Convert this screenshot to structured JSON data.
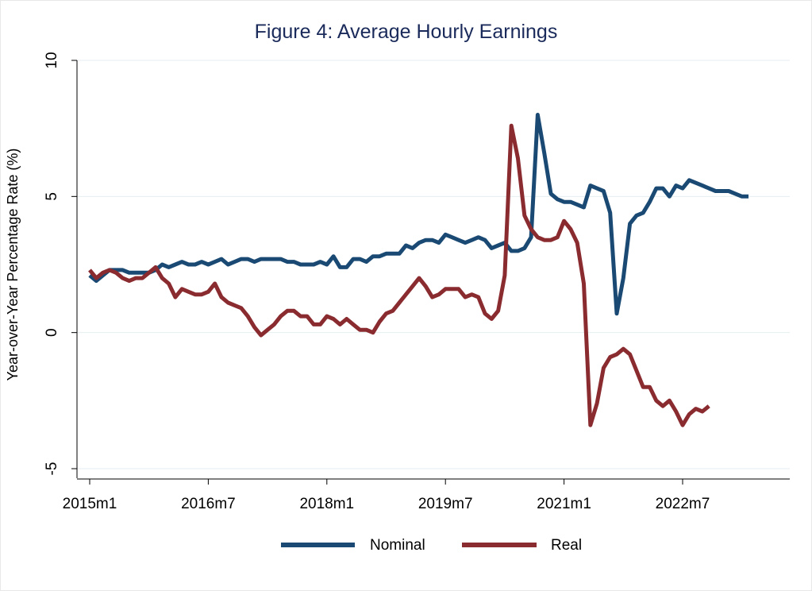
{
  "chart_data": {
    "type": "line",
    "title": "Figure 4: Average Hourly Earnings",
    "xlabel": "",
    "ylabel": "Year-over-Year Percentage Rate (%)",
    "ylim": [
      -5,
      10
    ],
    "yticks": [
      "-5",
      "0",
      "5",
      "10"
    ],
    "xticks": [
      "2015m1",
      "2016m7",
      "2018m1",
      "2019m7",
      "2021m1",
      "2022m7"
    ],
    "grid": true,
    "legend": "bottom",
    "series": [
      {
        "name": "Nominal",
        "color": "#1a4a73",
        "values": [
          2.1,
          1.9,
          2.1,
          2.3,
          2.3,
          2.3,
          2.2,
          2.2,
          2.2,
          2.2,
          2.3,
          2.5,
          2.4,
          2.5,
          2.6,
          2.5,
          2.5,
          2.6,
          2.5,
          2.6,
          2.7,
          2.5,
          2.6,
          2.7,
          2.7,
          2.6,
          2.7,
          2.7,
          2.7,
          2.7,
          2.6,
          2.6,
          2.5,
          2.5,
          2.5,
          2.6,
          2.5,
          2.8,
          2.4,
          2.4,
          2.7,
          2.7,
          2.6,
          2.8,
          2.8,
          2.9,
          2.9,
          2.9,
          3.2,
          3.1,
          3.3,
          3.4,
          3.4,
          3.3,
          3.6,
          3.5,
          3.4,
          3.3,
          3.4,
          3.5,
          3.4,
          3.1,
          3.2,
          3.3,
          3.0,
          3.0,
          3.1,
          3.5,
          8.0,
          6.6,
          5.1,
          4.9,
          4.8,
          4.8,
          4.7,
          4.6,
          5.4,
          5.3,
          5.2,
          4.4,
          0.7,
          2.0,
          4.0,
          4.3,
          4.4,
          4.8,
          5.3,
          5.3,
          5.0,
          5.4,
          5.3,
          5.6,
          5.5,
          5.4,
          5.3,
          5.2,
          5.2,
          5.2,
          5.1,
          5.0,
          5.0
        ]
      },
      {
        "name": "Real",
        "color": "#8a2b30",
        "values": [
          2.3,
          2.0,
          2.2,
          2.3,
          2.2,
          2.0,
          1.9,
          2.0,
          2.0,
          2.2,
          2.4,
          2.0,
          1.8,
          1.3,
          1.6,
          1.5,
          1.4,
          1.4,
          1.5,
          1.8,
          1.3,
          1.1,
          1.0,
          0.9,
          0.6,
          0.2,
          -0.1,
          0.1,
          0.3,
          0.6,
          0.8,
          0.8,
          0.6,
          0.6,
          0.3,
          0.3,
          0.6,
          0.5,
          0.3,
          0.5,
          0.3,
          0.1,
          0.1,
          0.0,
          0.4,
          0.7,
          0.8,
          1.1,
          1.4,
          1.7,
          2.0,
          1.7,
          1.3,
          1.4,
          1.6,
          1.6,
          1.6,
          1.3,
          1.4,
          1.3,
          0.7,
          0.5,
          0.8,
          2.1,
          7.6,
          6.4,
          4.3,
          3.8,
          3.5,
          3.4,
          3.4,
          3.5,
          4.1,
          3.8,
          3.3,
          1.8,
          -3.4,
          -2.6,
          -1.3,
          -0.9,
          -0.8,
          -0.6,
          -0.8,
          -1.4,
          -2.0,
          -2.0,
          -2.5,
          -2.7,
          -2.5,
          -2.9,
          -3.4,
          -3.0,
          -2.8,
          -2.9,
          -2.7
        ]
      }
    ]
  }
}
